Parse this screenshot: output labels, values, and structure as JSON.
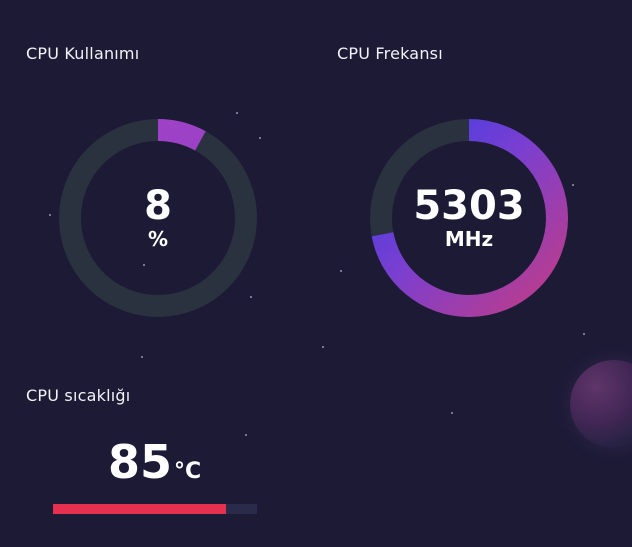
{
  "cpu_usage": {
    "title": "CPU Kullanımı",
    "value": "8",
    "unit": "%",
    "fraction": 0.08
  },
  "cpu_frequency": {
    "title": "CPU Frekansı",
    "value": "5303",
    "unit": "MHz",
    "fraction": 0.72
  },
  "cpu_temperature": {
    "title": "CPU sıcaklığı",
    "value": "85",
    "unit": "°C",
    "fraction": 0.85
  },
  "colors": {
    "background": "#1c1a35",
    "gauge_track": "#2a313f",
    "gauge_start": "#c13c86",
    "gauge_mid": "#7a3fd0",
    "gauge_end": "#3b3ce6",
    "temperature_bar": "#e5304f",
    "temperature_track": "#2a2b4a"
  }
}
